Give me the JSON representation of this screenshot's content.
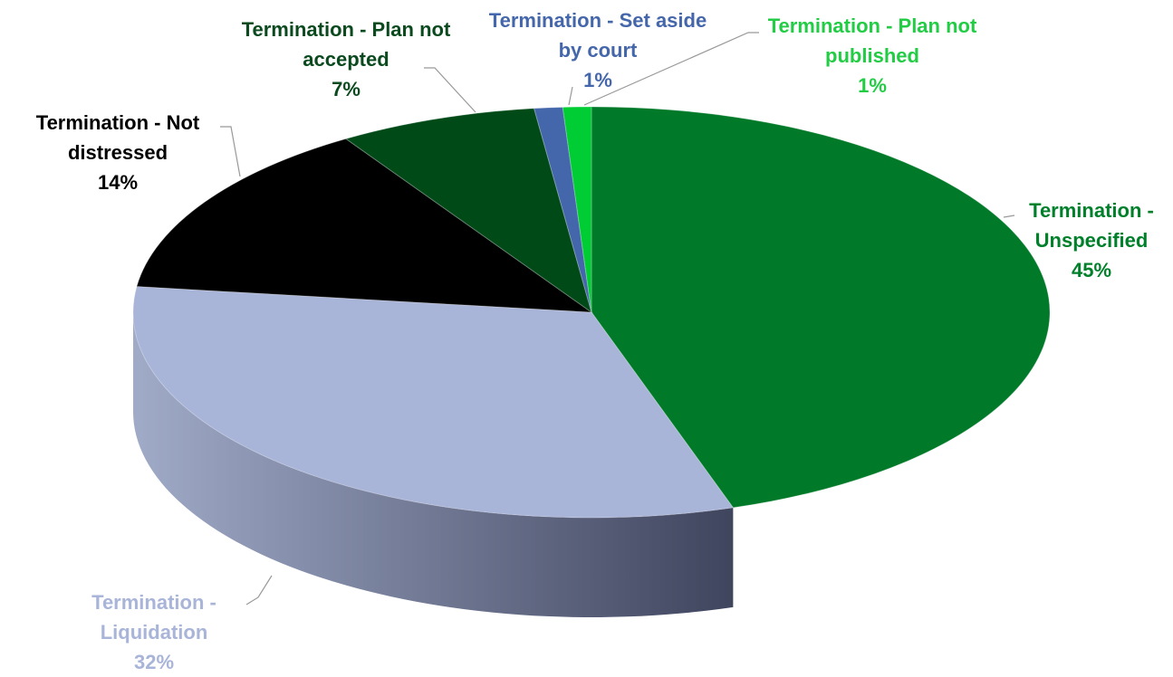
{
  "chart_data": {
    "type": "pie",
    "categories": [
      "Termination - Unspecified",
      "Termination - Liquidation",
      "Termination - Not distressed",
      "Termination - Plan not accepted",
      "Termination - Set aside by court",
      "Termination - Plan not published"
    ],
    "values": [
      45,
      32,
      14,
      7,
      1,
      1
    ],
    "value_labels": [
      "45%",
      "32%",
      "14%",
      "7%",
      "1%",
      "1%"
    ],
    "colors": [
      "#007a29",
      "#a8b4d8",
      "#000000",
      "#004a18",
      "#4466aa",
      "#00cc33"
    ],
    "label_colors": [
      "#00802b",
      "#a8b4d8",
      "#000000",
      "#0a4a1e",
      "#4466aa",
      "#22cc44"
    ]
  }
}
